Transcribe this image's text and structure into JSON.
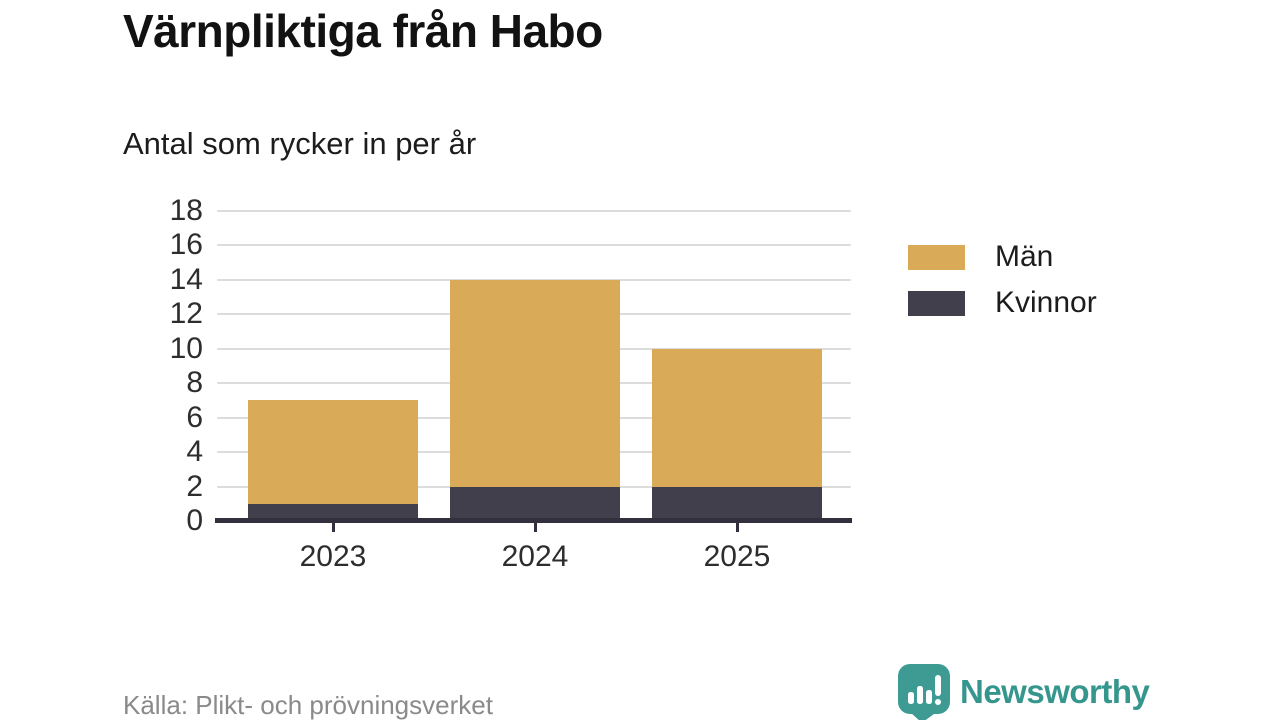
{
  "header": {
    "title": "Värnpliktiga från Habo",
    "subtitle": "Antal som rycker in per år"
  },
  "chart_data": {
    "type": "bar",
    "stacked": true,
    "title": "Värnpliktiga från Habo",
    "subtitle": "Antal som rycker in per år",
    "categories": [
      "2023",
      "2024",
      "2025"
    ],
    "series": [
      {
        "name": "Kvinnor",
        "values": [
          1,
          2,
          2
        ],
        "color": "#423f4d"
      },
      {
        "name": "Män",
        "values": [
          6,
          12,
          8
        ],
        "color": "#d9ab58"
      }
    ],
    "stack_totals": [
      7,
      14,
      10
    ],
    "xlabel": "",
    "ylabel": "",
    "ylim": [
      0,
      18
    ],
    "ytick_step": 2,
    "yticks": [
      0,
      2,
      4,
      6,
      8,
      10,
      12,
      14,
      16,
      18
    ],
    "grid": true,
    "legend_position": "right"
  },
  "legend": {
    "items": [
      {
        "label": "Män",
        "color": "#d9ab58"
      },
      {
        "label": "Kvinnor",
        "color": "#423f4d"
      }
    ]
  },
  "footer": {
    "source": "Källa: Plikt- och prövningsverket",
    "brand": "Newsworthy"
  },
  "colors": {
    "men": "#d9ab58",
    "women": "#423f4d",
    "gridline": "#dcdcdc",
    "axis": "#332f3d",
    "source_text": "#8a8a8a",
    "brand_teal": "#35968e"
  }
}
